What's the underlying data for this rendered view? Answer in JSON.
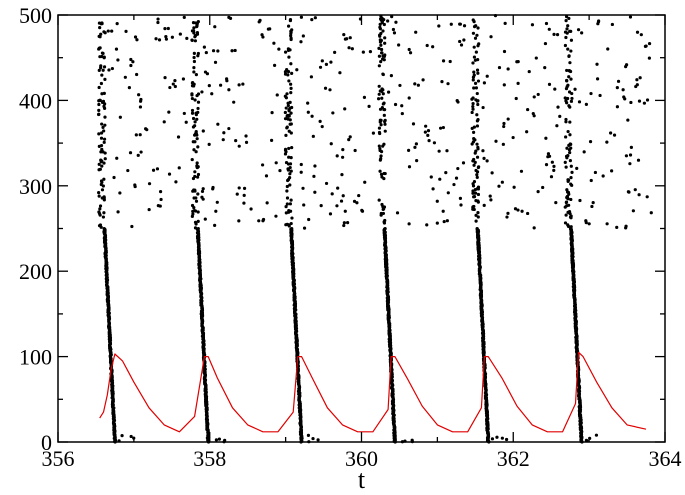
{
  "chart_data": {
    "type": "scatter",
    "title": "",
    "xlabel": "t",
    "ylabel": "",
    "xlim": [
      356,
      364
    ],
    "ylim": [
      0,
      500
    ],
    "x_ticks": [
      356,
      358,
      360,
      362,
      364
    ],
    "y_ticks": [
      0,
      100,
      200,
      300,
      400,
      500
    ],
    "x_tick_labels": [
      "356",
      "358",
      "360",
      "362",
      "364"
    ],
    "y_tick_labels": [
      "0",
      "100",
      "200",
      "300",
      "400",
      "500"
    ],
    "grid": false,
    "legend": "none",
    "burst_times": [
      356.7,
      357.93,
      359.16,
      360.39,
      361.62,
      362.85
    ],
    "series": [
      {
        "kind": "scatter",
        "color": "#000000",
        "description_of_pattern": "raster of spike events: dense near-vertical band rising from index 0 to about 250 at each burst time, with sparse scattered dots above index 250 up to 500",
        "dense_band_top": 250,
        "sparse_range": [
          250,
          500
        ]
      },
      {
        "kind": "line",
        "color": "#e00000",
        "x": [
          356.55,
          356.6,
          356.65,
          356.7,
          356.75,
          356.85,
          357.0,
          357.2,
          357.4,
          357.6,
          357.8,
          357.93,
          357.98,
          358.1,
          358.3,
          358.5,
          358.7,
          358.9,
          359.1,
          359.16,
          359.21,
          359.35,
          359.55,
          359.75,
          359.95,
          360.15,
          360.35,
          360.39,
          360.44,
          360.6,
          360.8,
          361.0,
          361.2,
          361.4,
          361.58,
          361.62,
          361.67,
          361.85,
          362.05,
          362.25,
          362.45,
          362.65,
          362.82,
          362.86,
          362.92,
          363.1,
          363.3,
          363.5,
          363.75
        ],
        "y": [
          28,
          35,
          55,
          85,
          103,
          95,
          70,
          40,
          20,
          12,
          30,
          100,
          100,
          75,
          40,
          20,
          12,
          12,
          35,
          100,
          100,
          75,
          40,
          20,
          12,
          12,
          38,
          100,
          100,
          75,
          42,
          20,
          12,
          12,
          40,
          100,
          100,
          75,
          42,
          20,
          12,
          12,
          45,
          105,
          100,
          70,
          40,
          20,
          15
        ]
      }
    ]
  }
}
